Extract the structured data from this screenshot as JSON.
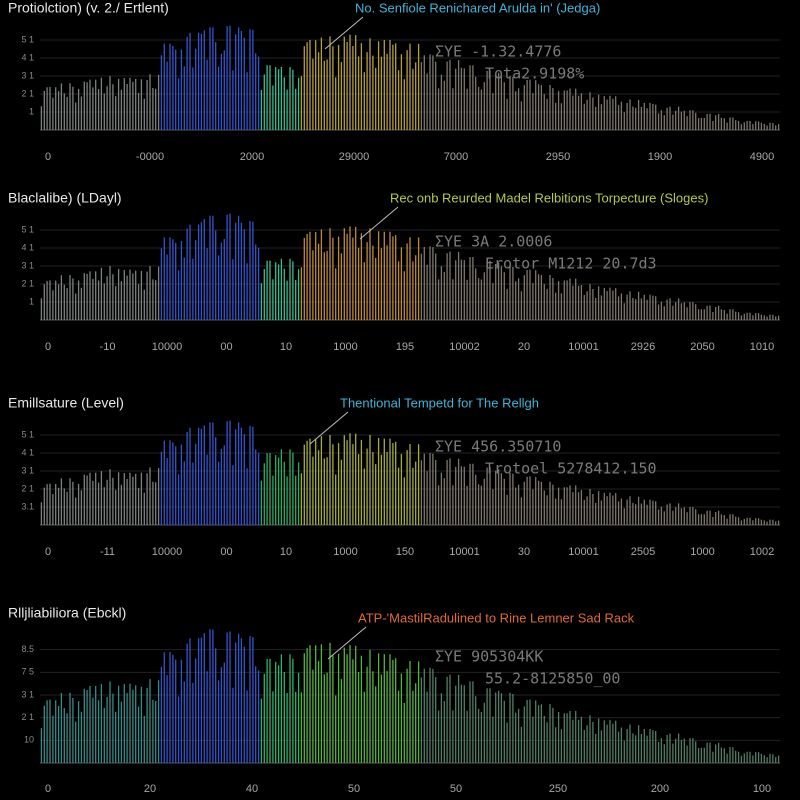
{
  "chart_data": [
    {
      "type": "bar",
      "title": "Protiolction) (v. 2./ Ertlent)",
      "annotation": "No. Senfiole Renichared Arulda in' (Jedga)",
      "annotation_color": "#3fb4d8",
      "stats": [
        "ΣYE  -1.32.4776",
        "Tota2.9198%"
      ],
      "x_labels": [
        "0",
        "-0000",
        "2000",
        "29000",
        "7000",
        "2950",
        "1900",
        "4900"
      ],
      "ylim": [
        0,
        6
      ],
      "yticks": [
        {
          "value": 1,
          "label": "1"
        },
        {
          "value": 2,
          "label": "2 1"
        },
        {
          "value": 3,
          "label": "3 1"
        },
        {
          "value": 4,
          "label": "4 1"
        },
        {
          "value": 5,
          "label": "5 1"
        }
      ],
      "grid": true,
      "segments": [
        {
          "color": "#8a8f8c",
          "values": [
            2.4,
            2.6,
            2.8,
            3.0,
            2.9,
            3.1
          ]
        },
        {
          "color": "#3a5ee0",
          "values": [
            4.8,
            5.4,
            5.7,
            5.8,
            5.6
          ]
        },
        {
          "color": "#3ed0a0",
          "values": [
            3.6,
            3.5
          ]
        },
        {
          "color": "#c9b040",
          "values": [
            5.0,
            5.2,
            5.3,
            5.1,
            5.0,
            4.8
          ]
        },
        {
          "color": "#8c8478",
          "values": [
            4.2,
            3.9,
            3.6,
            3.3,
            3.0,
            2.8,
            2.5,
            2.3,
            2.1,
            1.9,
            1.7,
            1.5,
            1.3,
            1.1,
            0.9,
            0.7,
            0.5,
            0.4
          ]
        }
      ]
    },
    {
      "type": "bar",
      "title": "Blaclalibe) (LDayl)",
      "annotation": "Rec onb Reurded Madel Relbitions Torpecture (Sloges)",
      "annotation_color": "#b8c848",
      "stats": [
        "ΣYE  3A 2.0006",
        "Erotor  M1212 20.7d3"
      ],
      "x_labels": [
        "0",
        "-10",
        "10000",
        "00",
        "10",
        "1000",
        "195",
        "10002",
        "20",
        "10001",
        "2926",
        "2050",
        "1010"
      ],
      "ylim": [
        0,
        6
      ],
      "yticks": [
        {
          "value": 1,
          "label": "1"
        },
        {
          "value": 2,
          "label": "2 1"
        },
        {
          "value": 3,
          "label": "3 1"
        },
        {
          "value": 4,
          "label": "4 1"
        },
        {
          "value": 5,
          "label": "5 1"
        }
      ],
      "grid": true,
      "segments": [
        {
          "color": "#8a8f8c",
          "values": [
            2.2,
            2.5,
            2.7,
            3.0,
            2.8,
            3.0
          ]
        },
        {
          "color": "#3a5ee0",
          "values": [
            4.6,
            5.3,
            5.8,
            5.9,
            5.5
          ]
        },
        {
          "color": "#3ed0a0",
          "values": [
            3.3,
            3.4
          ]
        },
        {
          "color": "#d09a3a",
          "values": [
            4.9,
            5.1,
            5.2,
            5.1,
            4.9,
            4.6
          ]
        },
        {
          "color": "#8c8478",
          "values": [
            4.1,
            3.8,
            3.5,
            3.3,
            3.0,
            2.8,
            2.5,
            2.3,
            2.0,
            1.8,
            1.6,
            1.4,
            1.2,
            1.0,
            0.8,
            0.6,
            0.4,
            0.3
          ]
        }
      ]
    },
    {
      "type": "bar",
      "title": "Emillsature (Level)",
      "annotation": "Thentional Tempetd for The Rellgh",
      "annotation_color": "#3fb4d8",
      "stats": [
        "ΣYE  456.350710",
        "Trotoel 5278412.150"
      ],
      "x_labels": [
        "0",
        "-11",
        "10000",
        "00",
        "10",
        "1000",
        "150",
        "10001",
        "30",
        "10001",
        "2505",
        "1000",
        "1002"
      ],
      "ylim": [
        0,
        6
      ],
      "yticks": [
        {
          "value": 1,
          "label": "3.1"
        },
        {
          "value": 2,
          "label": "2 1"
        },
        {
          "value": 3,
          "label": "3 1"
        },
        {
          "value": 4,
          "label": "4 1"
        },
        {
          "value": 5,
          "label": "5 1"
        }
      ],
      "grid": true,
      "segments": [
        {
          "color": "#8a8f8c",
          "values": [
            2.3,
            2.6,
            2.9,
            3.1,
            2.9,
            3.2
          ]
        },
        {
          "color": "#3a5ee0",
          "values": [
            4.7,
            5.4,
            5.7,
            5.8,
            5.5
          ]
        },
        {
          "color": "#30c070",
          "values": [
            4.0,
            4.2
          ]
        },
        {
          "color": "#b8c040",
          "values": [
            4.8,
            5.0,
            5.1,
            5.0,
            4.8,
            4.5
          ]
        },
        {
          "color": "#8c8478",
          "values": [
            4.0,
            3.7,
            3.4,
            3.2,
            2.9,
            2.7,
            2.4,
            2.2,
            2.0,
            1.8,
            1.6,
            1.4,
            1.2,
            1.0,
            0.8,
            0.6,
            0.4,
            0.3
          ]
        }
      ]
    },
    {
      "type": "bar",
      "title": "Rlljliabiliora (Ebckl)",
      "annotation": "ATP-'MastilRadulined to Rine Lemner Sad Rack",
      "annotation_color": "#e06a30",
      "stats": [
        "ΣYE  905304KK",
        "55.2-8125850_00"
      ],
      "x_labels": [
        "0",
        "20",
        "40",
        "50",
        "50",
        "250",
        "200",
        "100"
      ],
      "ylim": [
        0,
        6
      ],
      "yticks": [
        {
          "value": 1,
          "label": "10"
        },
        {
          "value": 2,
          "label": "2 1"
        },
        {
          "value": 3,
          "label": "3 1"
        },
        {
          "value": 4,
          "label": "7 5"
        },
        {
          "value": 5,
          "label": "8.5"
        }
      ],
      "grid": true,
      "segments": [
        {
          "color": "#3a9a98",
          "values": [
            2.8,
            3.1,
            3.4,
            3.6,
            3.5,
            3.7
          ]
        },
        {
          "color": "#3a5ee0",
          "values": [
            4.9,
            5.5,
            5.9,
            5.8,
            5.6
          ]
        },
        {
          "color": "#30c878",
          "values": [
            4.6,
            4.8
          ]
        },
        {
          "color": "#60c840",
          "values": [
            5.2,
            5.3,
            5.2,
            5.0,
            4.8,
            4.5
          ]
        },
        {
          "color": "#5a8c70",
          "values": [
            4.2,
            3.9,
            3.6,
            3.3,
            3.1,
            2.8,
            2.6,
            2.3,
            2.1,
            1.9,
            1.7,
            1.5,
            1.3,
            1.1,
            0.9,
            0.7,
            0.5,
            0.4
          ]
        }
      ]
    }
  ]
}
